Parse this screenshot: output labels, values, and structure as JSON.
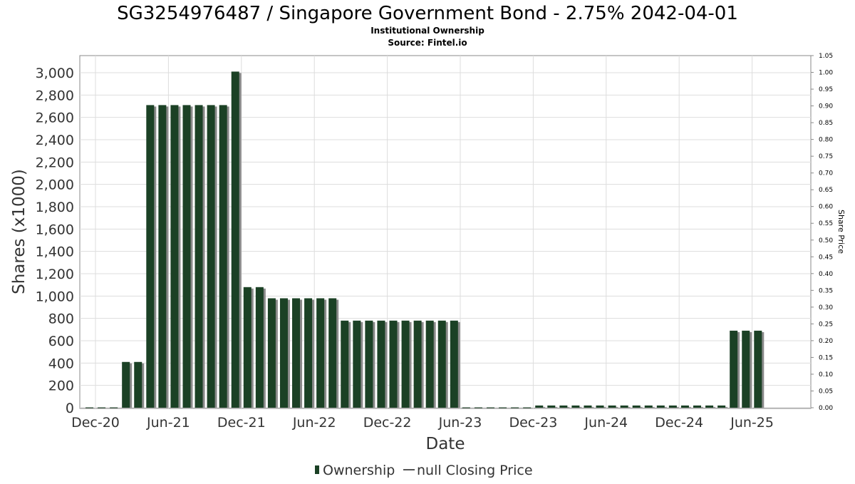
{
  "chart_data": {
    "type": "bar",
    "title": "SG3254976487 / Singapore Government Bond - 2.75% 2042-04-01",
    "subtitle": "Institutional Ownership",
    "source": "Source: Fintel.io",
    "xlabel": "Date",
    "ylabel": "Shares (x1000)",
    "y2label": "Share Price",
    "ylim": [
      0,
      3000
    ],
    "y2lim": [
      0,
      1.05
    ],
    "yticks": [
      "0",
      "200",
      "400",
      "600",
      "800",
      "1,000",
      "1,200",
      "1,400",
      "1,600",
      "1,800",
      "2,000",
      "2,200",
      "2,400",
      "2,600",
      "2,800",
      "3,000"
    ],
    "y2ticks": [
      "0.00",
      "0.05",
      "0.10",
      "0.15",
      "0.20",
      "0.25",
      "0.30",
      "0.35",
      "0.40",
      "0.45",
      "0.50",
      "0.55",
      "0.60",
      "0.65",
      "0.70",
      "0.75",
      "0.80",
      "0.85",
      "0.90",
      "0.95",
      "1.00",
      "1.05"
    ],
    "xticks": [
      "Dec-20",
      "Jun-21",
      "Dec-21",
      "Jun-22",
      "Dec-22",
      "Jun-23",
      "Dec-23",
      "Jun-24",
      "Dec-24",
      "Jun-25"
    ],
    "grid": true,
    "legend_position": "bottom",
    "colors": {
      "bar": "#1b4125",
      "bar_shadow": "#8a8a8a",
      "line": "#555555"
    },
    "series": [
      {
        "name": "Ownership",
        "values": [
          0,
          0,
          0,
          410,
          410,
          2710,
          2710,
          2710,
          2710,
          2710,
          2710,
          2710,
          3010,
          1080,
          1080,
          980,
          980,
          980,
          980,
          980,
          980,
          780,
          780,
          780,
          780,
          780,
          780,
          780,
          780,
          780,
          780,
          0,
          0,
          0,
          0,
          0,
          0,
          20,
          20,
          20,
          20,
          20,
          20,
          20,
          20,
          20,
          20,
          20,
          20,
          20,
          20,
          20,
          20,
          690,
          690,
          690
        ]
      }
    ],
    "legend": [
      {
        "name": "Ownership",
        "marker": "bar"
      },
      {
        "name": "null Closing Price",
        "marker": "line"
      }
    ]
  }
}
